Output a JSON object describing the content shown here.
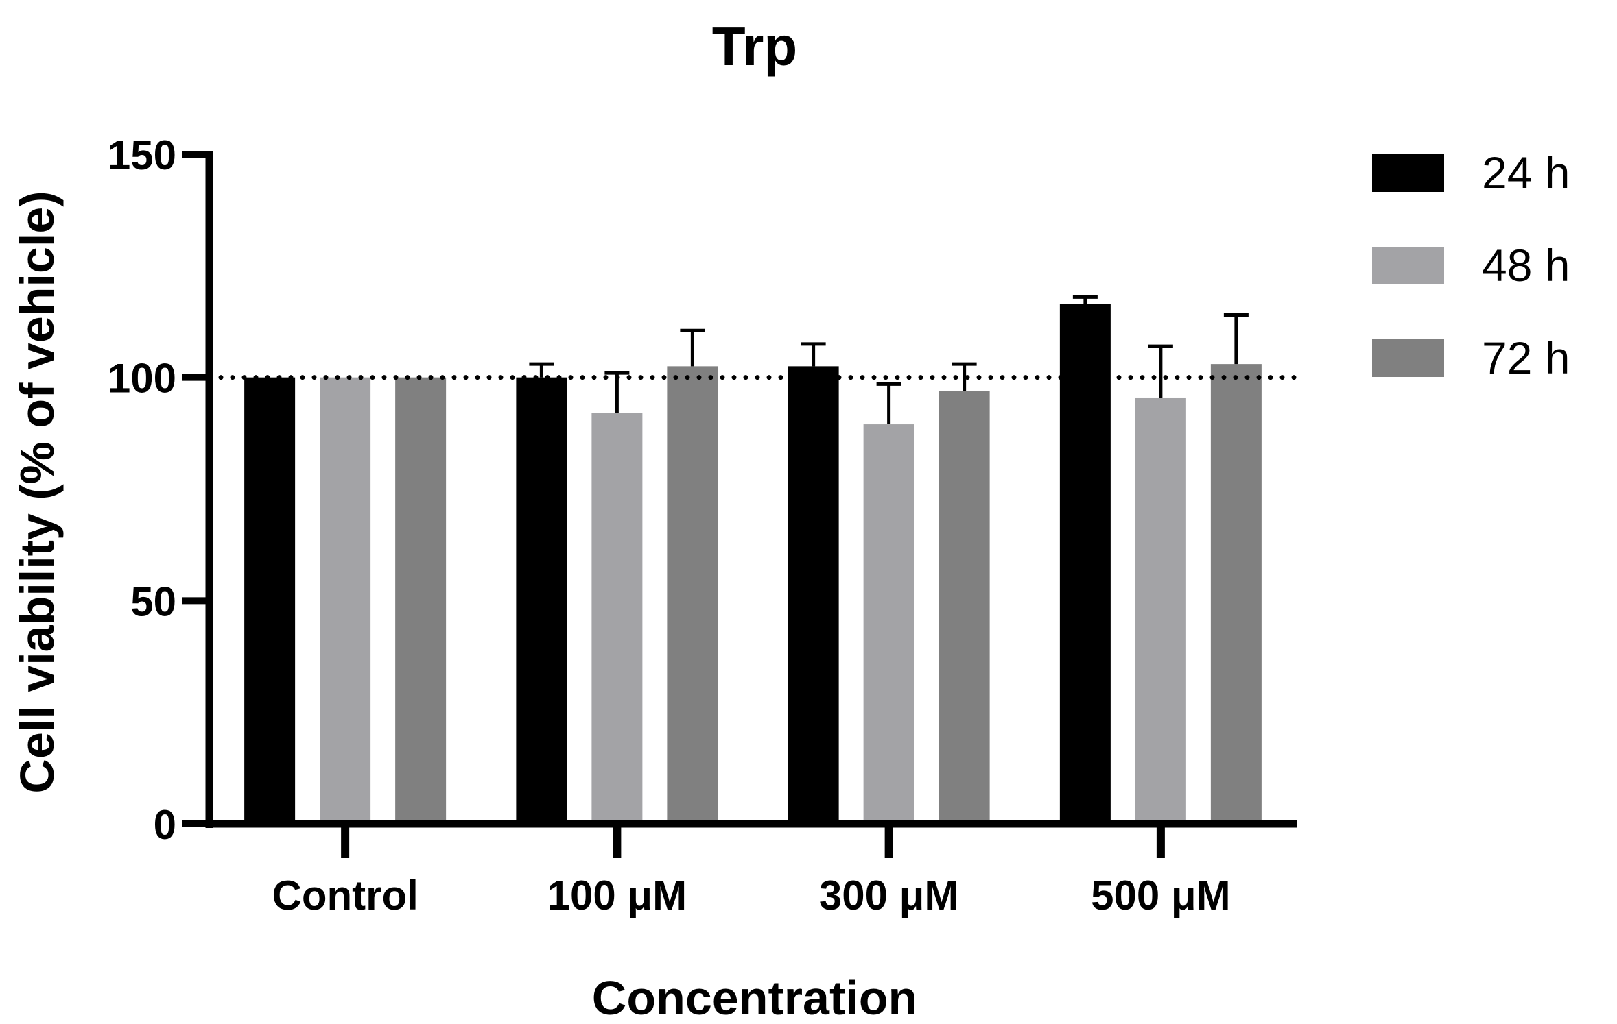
{
  "chart_data": {
    "type": "bar",
    "title": "Trp",
    "xlabel": "Concentration",
    "ylabel": "Cell viability (% of vehicle)",
    "ylim": [
      0,
      150
    ],
    "yticks": [
      "0",
      "50",
      "100",
      "150"
    ],
    "reference_line": 100,
    "categories": [
      "Control",
      "100 μM",
      "300 μM",
      "500 μM"
    ],
    "series": [
      {
        "name": "24 h",
        "color": "#000000",
        "values": [
          100,
          100,
          102.5,
          116.5
        ],
        "errors": [
          0,
          3,
          5,
          1.5
        ]
      },
      {
        "name": "48 h",
        "color": "#a3a3a6",
        "values": [
          100,
          92,
          89.5,
          95.5
        ],
        "errors": [
          0,
          9,
          9,
          11.5
        ]
      },
      {
        "name": "72 h",
        "color": "#808080",
        "values": [
          100,
          102.5,
          97,
          103
        ],
        "errors": [
          0,
          8,
          6,
          11
        ]
      }
    ],
    "legend_position": "top-right"
  }
}
